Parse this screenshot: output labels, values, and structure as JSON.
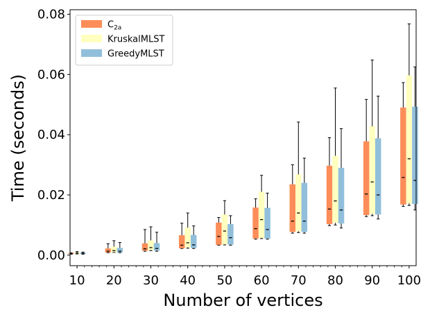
{
  "chart_data": {
    "type": "boxplot",
    "xlabel": "Number of vertices",
    "ylabel": "Time (seconds)",
    "ylim": [
      -0.0035,
      0.0815
    ],
    "yticks": [
      0.0,
      0.02,
      0.04,
      0.06,
      0.08
    ],
    "ytick_labels": [
      "0.00",
      "0.02",
      "0.04",
      "0.06",
      "0.08"
    ],
    "xlim": [
      8.1,
      101.9
    ],
    "categories": [
      10,
      20,
      30,
      40,
      50,
      60,
      70,
      80,
      90,
      100
    ],
    "xtick_labels": [
      "10",
      "20",
      "30",
      "40",
      "50",
      "60",
      "70",
      "80",
      "90",
      "100"
    ],
    "legend": {
      "placement": "top-left",
      "entries": [
        {
          "name": "C",
          "sub": "2a"
        },
        {
          "name": "KruskalMLST",
          "sub": ""
        },
        {
          "name": "GreedyMLST",
          "sub": ""
        }
      ]
    },
    "series": [
      {
        "name": "C2a",
        "color": "#fc8d59",
        "offset": -1.6,
        "boxes": [
          {
            "x": 10,
            "wlo": 0.0003,
            "q1": 0.0004,
            "med": 0.0005,
            "q3": 0.0007,
            "whi": 0.0008
          },
          {
            "x": 20,
            "wlo": 0.0008,
            "q1": 0.0009,
            "med": 0.0013,
            "q3": 0.0022,
            "whi": 0.0038
          },
          {
            "x": 30,
            "wlo": 0.0013,
            "q1": 0.0015,
            "med": 0.0021,
            "q3": 0.0039,
            "whi": 0.0085
          },
          {
            "x": 40,
            "wlo": 0.0022,
            "q1": 0.0023,
            "med": 0.0033,
            "q3": 0.0066,
            "whi": 0.0106
          },
          {
            "x": 50,
            "wlo": 0.0033,
            "q1": 0.0034,
            "med": 0.0062,
            "q3": 0.0108,
            "whi": 0.0125
          },
          {
            "x": 60,
            "wlo": 0.0053,
            "q1": 0.0055,
            "med": 0.0088,
            "q3": 0.0158,
            "whi": 0.0187
          },
          {
            "x": 70,
            "wlo": 0.0073,
            "q1": 0.0077,
            "med": 0.0113,
            "q3": 0.0235,
            "whi": 0.03
          },
          {
            "x": 80,
            "wlo": 0.0098,
            "q1": 0.0103,
            "med": 0.0153,
            "q3": 0.0297,
            "whi": 0.039
          },
          {
            "x": 90,
            "wlo": 0.0128,
            "q1": 0.0133,
            "med": 0.0203,
            "q3": 0.0378,
            "whi": 0.0517
          },
          {
            "x": 100,
            "wlo": 0.0162,
            "q1": 0.0168,
            "med": 0.0258,
            "q3": 0.049,
            "whi": 0.0573
          }
        ]
      },
      {
        "name": "KruskalMLST",
        "color": "#ffffbf",
        "offset": 0,
        "boxes": [
          {
            "x": 10,
            "wlo": 0.0004,
            "q1": 0.0005,
            "med": 0.0007,
            "q3": 0.0009,
            "whi": 0.0012
          },
          {
            "x": 20,
            "wlo": 0.0009,
            "q1": 0.001,
            "med": 0.0015,
            "q3": 0.0028,
            "whi": 0.0048
          },
          {
            "x": 30,
            "wlo": 0.0015,
            "q1": 0.0017,
            "med": 0.0025,
            "q3": 0.0049,
            "whi": 0.0094
          },
          {
            "x": 40,
            "wlo": 0.0023,
            "q1": 0.0026,
            "med": 0.0041,
            "q3": 0.0091,
            "whi": 0.014
          },
          {
            "x": 50,
            "wlo": 0.0034,
            "q1": 0.0036,
            "med": 0.008,
            "q3": 0.0135,
            "whi": 0.0181
          },
          {
            "x": 60,
            "wlo": 0.0055,
            "q1": 0.0057,
            "med": 0.0118,
            "q3": 0.021,
            "whi": 0.0265
          },
          {
            "x": 70,
            "wlo": 0.0075,
            "q1": 0.0079,
            "med": 0.014,
            "q3": 0.0268,
            "whi": 0.0442
          },
          {
            "x": 80,
            "wlo": 0.01,
            "q1": 0.0107,
            "med": 0.018,
            "q3": 0.033,
            "whi": 0.0555
          },
          {
            "x": 90,
            "wlo": 0.0131,
            "q1": 0.0137,
            "med": 0.0243,
            "q3": 0.0428,
            "whi": 0.0648
          },
          {
            "x": 100,
            "wlo": 0.0165,
            "q1": 0.0172,
            "med": 0.032,
            "q3": 0.0597,
            "whi": 0.0768
          }
        ]
      },
      {
        "name": "GreedyMLST",
        "color": "#91bfdb",
        "offset": 1.6,
        "boxes": [
          {
            "x": 10,
            "wlo": 0.0003,
            "q1": 0.0004,
            "med": 0.0006,
            "q3": 0.0008,
            "whi": 0.001
          },
          {
            "x": 20,
            "wlo": 0.0008,
            "q1": 0.0009,
            "med": 0.0013,
            "q3": 0.0024,
            "whi": 0.0042
          },
          {
            "x": 30,
            "wlo": 0.0013,
            "q1": 0.0015,
            "med": 0.0022,
            "q3": 0.004,
            "whi": 0.0076
          },
          {
            "x": 40,
            "wlo": 0.0022,
            "q1": 0.0024,
            "med": 0.0034,
            "q3": 0.0067,
            "whi": 0.0097
          },
          {
            "x": 50,
            "wlo": 0.0033,
            "q1": 0.0035,
            "med": 0.0058,
            "q3": 0.0103,
            "whi": 0.0131
          },
          {
            "x": 60,
            "wlo": 0.0053,
            "q1": 0.0055,
            "med": 0.0085,
            "q3": 0.0157,
            "whi": 0.0206
          },
          {
            "x": 70,
            "wlo": 0.0073,
            "q1": 0.0077,
            "med": 0.0113,
            "q3": 0.024,
            "whi": 0.0322
          },
          {
            "x": 80,
            "wlo": 0.009,
            "q1": 0.0105,
            "med": 0.015,
            "q3": 0.029,
            "whi": 0.042
          },
          {
            "x": 90,
            "wlo": 0.012,
            "q1": 0.0135,
            "med": 0.02,
            "q3": 0.0388,
            "whi": 0.0528
          },
          {
            "x": 100,
            "wlo": 0.015,
            "q1": 0.017,
            "med": 0.0248,
            "q3": 0.0493,
            "whi": 0.0625
          }
        ]
      }
    ]
  }
}
